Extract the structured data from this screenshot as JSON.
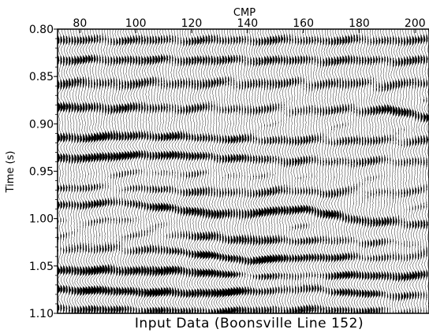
{
  "chart_data": {
    "type": "seismic-wiggle",
    "caption": "Input Data (Boonsville Line 152)",
    "xlabel": "CMP",
    "ylabel": "Time (s)",
    "x_axis_position": "top",
    "xlim": [
      72,
      205
    ],
    "ylim": [
      0.8,
      1.1
    ],
    "y_inverted": true,
    "x_ticks": [
      {
        "value": 80,
        "label": "80"
      },
      {
        "value": 100,
        "label": "100"
      },
      {
        "value": 120,
        "label": "120"
      },
      {
        "value": 140,
        "label": "140"
      },
      {
        "value": 160,
        "label": "160"
      },
      {
        "value": 180,
        "label": "180"
      },
      {
        "value": 200,
        "label": "200"
      }
    ],
    "y_ticks": [
      {
        "value": 0.8,
        "label": "0.80"
      },
      {
        "value": 0.85,
        "label": "0.85"
      },
      {
        "value": 0.9,
        "label": "0.90"
      },
      {
        "value": 0.95,
        "label": "0.95"
      },
      {
        "value": 1.0,
        "label": "1.00"
      },
      {
        "value": 1.05,
        "label": "1.05"
      },
      {
        "value": 1.1,
        "label": "1.10"
      }
    ],
    "fill": "positive-lobes-black",
    "grid": false,
    "reflectors": [
      {
        "x": [
          72,
          120,
          160,
          180,
          190,
          205
        ],
        "t": [
          0.883,
          0.884,
          0.886,
          0.886,
          0.885,
          0.893
        ],
        "amp": [
          0.9,
          0.5,
          0.4,
          0.6,
          0.95,
          0.85
        ]
      },
      {
        "x": [
          72,
          100,
          140,
          205
        ],
        "t": [
          0.915,
          0.913,
          0.917,
          0.918
        ],
        "amp": [
          0.8,
          0.7,
          0.5,
          0.4
        ]
      },
      {
        "x": [
          72,
          110,
          160,
          205
        ],
        "t": [
          0.937,
          0.932,
          0.94,
          0.94
        ],
        "amp": [
          0.85,
          0.8,
          0.4,
          0.35
        ]
      },
      {
        "x": [
          72,
          90,
          120,
          205
        ],
        "t": [
          0.97,
          0.97,
          0.972,
          0.972
        ],
        "amp": [
          0.6,
          0.7,
          0.4,
          0.3
        ]
      },
      {
        "x": [
          72,
          95,
          130,
          160,
          180,
          205
        ],
        "t": [
          0.985,
          0.982,
          0.996,
          0.99,
          1.002,
          1.006
        ],
        "amp": [
          0.9,
          0.95,
          0.75,
          0.9,
          0.7,
          0.5
        ]
      },
      {
        "x": [
          72,
          120,
          160,
          205
        ],
        "t": [
          1.02,
          1.02,
          1.025,
          1.03
        ],
        "amp": [
          0.5,
          0.5,
          0.6,
          0.5
        ]
      },
      {
        "x": [
          72,
          110,
          140,
          160,
          205
        ],
        "t": [
          1.03,
          1.032,
          1.046,
          1.04,
          1.04
        ],
        "amp": [
          0.6,
          0.7,
          0.95,
          0.8,
          0.5
        ]
      },
      {
        "x": [
          72,
          120,
          150,
          205
        ],
        "t": [
          1.055,
          1.055,
          1.062,
          1.06
        ],
        "amp": [
          0.7,
          0.7,
          0.85,
          0.5
        ]
      },
      {
        "x": [
          72,
          120,
          160,
          190,
          205
        ],
        "t": [
          1.075,
          1.08,
          1.072,
          1.082,
          1.084
        ],
        "amp": [
          0.7,
          0.8,
          0.9,
          0.6,
          0.5
        ]
      },
      {
        "x": [
          72,
          140,
          205
        ],
        "t": [
          1.095,
          1.098,
          1.096
        ],
        "amp": [
          0.6,
          0.6,
          0.5
        ]
      },
      {
        "x": [
          72,
          205
        ],
        "t": [
          0.812,
          0.812
        ],
        "amp": [
          0.5,
          0.45
        ]
      },
      {
        "x": [
          72,
          205
        ],
        "t": [
          0.832,
          0.833
        ],
        "amp": [
          0.55,
          0.45
        ]
      },
      {
        "x": [
          72,
          205
        ],
        "t": [
          0.857,
          0.858
        ],
        "amp": [
          0.5,
          0.45
        ]
      }
    ],
    "dominant_period_s": 0.022
  }
}
